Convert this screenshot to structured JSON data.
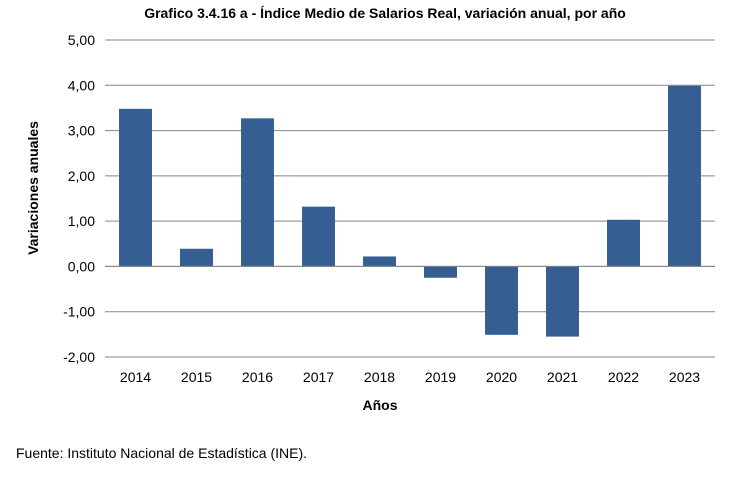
{
  "source_note": "Fuente: Instituto Nacional de Estadística (INE).",
  "colors": {
    "bar": "#355E93",
    "grid": "#868686",
    "axis": "#868686"
  },
  "chart_data": {
    "type": "bar",
    "title": "Grafico 3.4.16 a - Índice Medio de Salarios Real, variación anual, por año",
    "xlabel": "Años",
    "ylabel": "Variaciones anuales",
    "categories": [
      "2014",
      "2015",
      "2016",
      "2017",
      "2018",
      "2019",
      "2020",
      "2021",
      "2022",
      "2023"
    ],
    "values": [
      3.48,
      0.39,
      3.27,
      1.32,
      0.22,
      -0.25,
      -1.51,
      -1.55,
      1.03,
      3.99
    ],
    "ylim": [
      -2,
      5
    ],
    "yticks": [
      "-2,00",
      "-1,00",
      "0,00",
      "1,00",
      "2,00",
      "3,00",
      "4,00",
      "5,00"
    ],
    "grid": true,
    "legend": "none"
  }
}
